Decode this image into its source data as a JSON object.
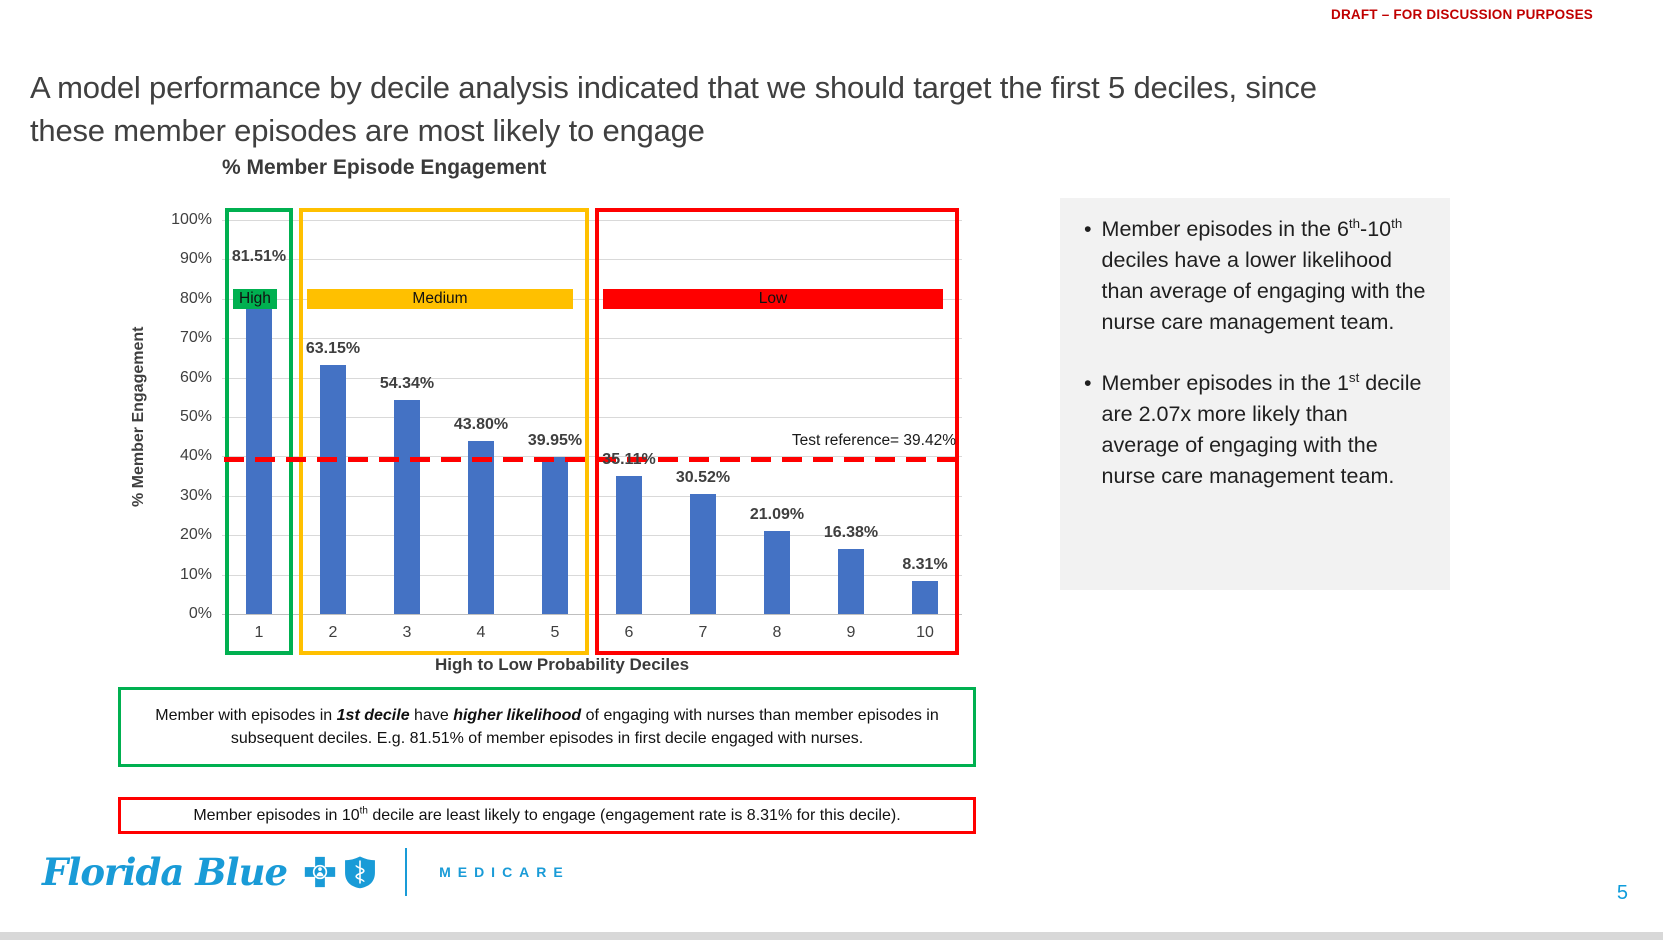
{
  "page": {
    "draft_notice": "DRAFT – FOR DISCUSSION PURPOSES",
    "draft_color": "#C00000",
    "title": "A model performance by decile analysis indicated that we should target the first 5 deciles, since these member episodes are most likely to engage",
    "page_number": "5"
  },
  "chart_data": {
    "type": "bar",
    "title": "% Member Episode Engagement",
    "xlabel": "High to Low Probability Deciles",
    "ylabel": "% Member Engagement",
    "categories": [
      "1",
      "2",
      "3",
      "4",
      "5",
      "6",
      "7",
      "8",
      "9",
      "10"
    ],
    "values": [
      81.51,
      63.15,
      54.34,
      43.8,
      39.95,
      35.11,
      30.52,
      21.09,
      16.38,
      8.31
    ],
    "value_labels": [
      "81.51%",
      "63.15%",
      "54.34%",
      "43.80%",
      "39.95%",
      "35.11%",
      "30.52%",
      "21.09%",
      "16.38%",
      "8.31%"
    ],
    "ylim": [
      0,
      100
    ],
    "y_ticks": [
      "100%",
      "90%",
      "80%",
      "70%",
      "60%",
      "50%",
      "40%",
      "30%",
      "20%",
      "10%",
      "0%"
    ],
    "grid": true,
    "legend_position": "none",
    "bar_color": "#4472C4",
    "reference_line": {
      "value": 39.42,
      "label": "Test reference= 39.42%",
      "color": "#FF0000"
    },
    "zones": [
      {
        "label": "High",
        "start_decile": 1,
        "end_decile": 1,
        "color": "#00B050"
      },
      {
        "label": "Medium",
        "start_decile": 2,
        "end_decile": 5,
        "color": "#FFC000"
      },
      {
        "label": "Low",
        "start_decile": 6,
        "end_decile": 10,
        "color": "#FF0000"
      }
    ]
  },
  "side_panel": {
    "bg_color": "#F2F2F2",
    "bullet1": {
      "s0": "Member episodes in the 6",
      "sup0": "th",
      "s1": "-10",
      "sup1": "th",
      "s2": " deciles have a lower likelihood than average of engaging with the nurse care management team."
    },
    "bullet2": {
      "s0": "Member episodes in the 1",
      "sup0": "st",
      "s1": " decile are 2.07x more likely than average of engaging with the nurse care management team."
    }
  },
  "notes": {
    "green": {
      "border_color": "#00B050",
      "s0": "Member with episodes in ",
      "em0": "1st decile",
      "s1": " have ",
      "em1": "higher likelihood",
      "s2": " of engaging with nurses than member episodes in subsequent deciles. E.g.  81.51% of member episodes in first decile engaged with nurses."
    },
    "red": {
      "border_color": "#FF0000",
      "s0": "Member episodes in 10",
      "sup0": "th",
      "s1": " decile are least likely to engage (engagement rate is 8.31% for this decile)."
    }
  },
  "footer": {
    "brand": "Florida Blue",
    "brand_sub": "MEDICARE",
    "brand_color": "#199BD7"
  }
}
